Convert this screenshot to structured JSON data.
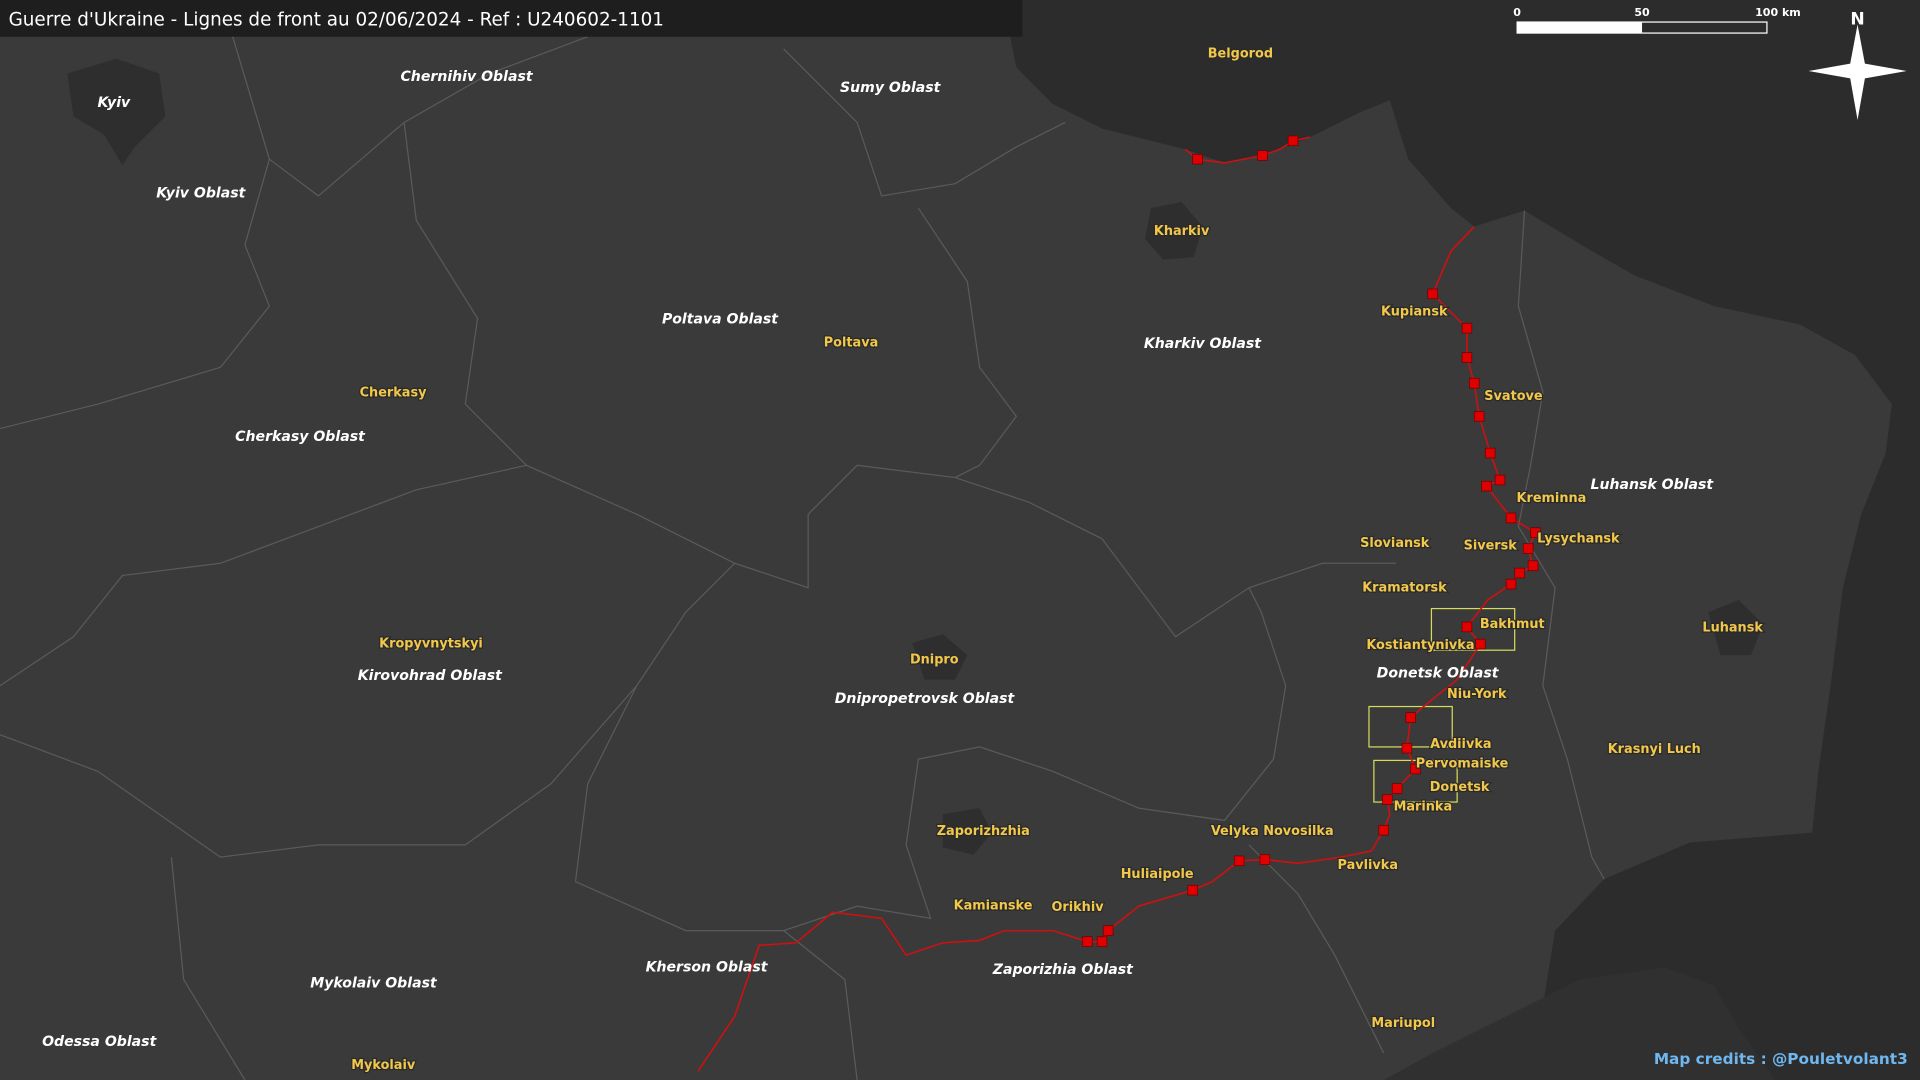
{
  "title": "Guerre d'Ukraine - Lignes de front au 02/06/2024 - Ref : U240602-1101",
  "scale_bar": [
    "0",
    "50",
    "100 km"
  ],
  "compass": "N",
  "credits": "Map credits : @Pouletvolant3",
  "capital": "Kyiv",
  "oblasts": [
    "Chernihiv Oblast",
    "Sumy Oblast",
    "Kyiv Oblast",
    "Poltava Oblast",
    "Kharkiv Oblast",
    "Cherkasy Oblast",
    "Luhansk Oblast",
    "Kirovohrad Oblast",
    "Donetsk Oblast",
    "Dnipropetrovsk Oblast",
    "Kherson Oblast",
    "Zaporizhia Oblast",
    "Mykolaiv Oblast",
    "Odessa Oblast"
  ],
  "cities": [
    "Belgorod",
    "Kharkiv",
    "Kupiansk",
    "Poltava",
    "Svatove",
    "Cherkasy",
    "Kreminna",
    "Sloviansk",
    "Siversk",
    "Lysychansk",
    "Kramatorsk",
    "Bakhmut",
    "Kostiantynivka",
    "Luhansk",
    "Kropyvnytskyi",
    "Dnipro",
    "Niu-York",
    "Krasnyi Luch",
    "Avdiivka",
    "Pervomaiske",
    "Donetsk",
    "Marinka",
    "Zaporizhzhia",
    "Velyka Novosilka",
    "Pavlivka",
    "Huliaipole",
    "Kamianske",
    "Orikhiv",
    "Mariupol",
    "Mykolaiv"
  ]
}
